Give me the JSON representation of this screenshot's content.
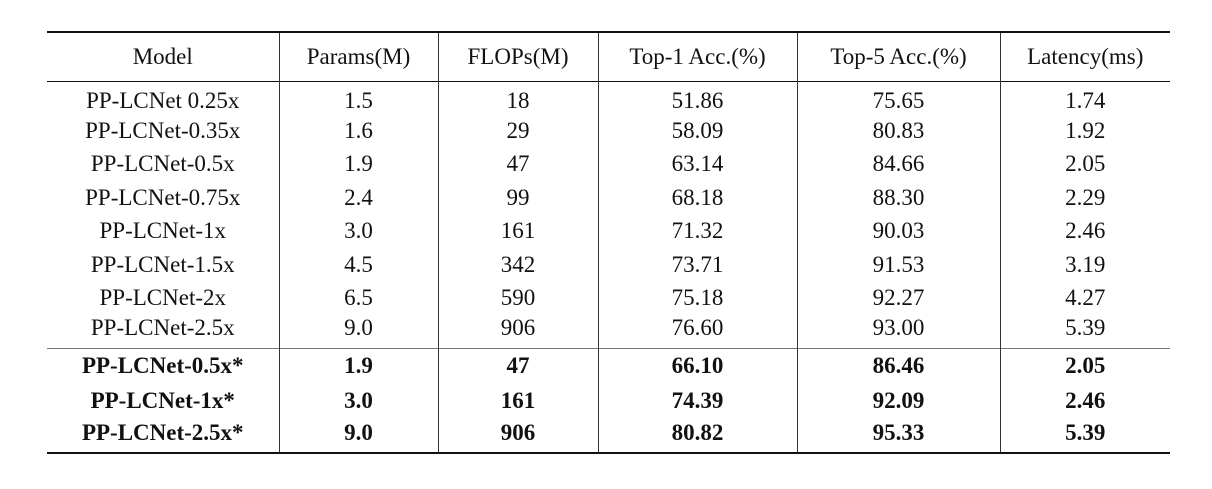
{
  "table": {
    "header": [
      "Model",
      "Params(M)",
      "FLOPs(M)",
      "Top-1 Acc.(%)",
      "Top-5 Acc.(%)",
      "Latency(ms)"
    ],
    "rows": [
      [
        "PP-LCNet 0.25x",
        "1.5",
        "18",
        "51.86",
        "75.65",
        "1.74"
      ],
      [
        "PP-LCNet-0.35x",
        "1.6",
        "29",
        "58.09",
        "80.83",
        "1.92"
      ],
      [
        "PP-LCNet-0.5x",
        "1.9",
        "47",
        "63.14",
        "84.66",
        "2.05"
      ],
      [
        "PP-LCNet-0.75x",
        "2.4",
        "99",
        "68.18",
        "88.30",
        "2.29"
      ],
      [
        "PP-LCNet-1x",
        "3.0",
        "161",
        "71.32",
        "90.03",
        "2.46"
      ],
      [
        "PP-LCNet-1.5x",
        "4.5",
        "342",
        "73.71",
        "91.53",
        "3.19"
      ],
      [
        "PP-LCNet-2x",
        "6.5",
        "590",
        "75.18",
        "92.27",
        "4.27"
      ],
      [
        "PP-LCNet-2.5x",
        "9.0",
        "906",
        "76.60",
        "93.00",
        "5.39"
      ]
    ],
    "highlighted_rows": [
      [
        "PP-LCNet-0.5x*",
        "1.9",
        "47",
        "66.10",
        "86.46",
        "2.05"
      ],
      [
        "PP-LCNet-1x*",
        "3.0",
        "161",
        "74.39",
        "92.09",
        "2.46"
      ],
      [
        "PP-LCNet-2.5x*",
        "9.0",
        "906",
        "80.82",
        "95.33",
        "5.39"
      ]
    ]
  }
}
